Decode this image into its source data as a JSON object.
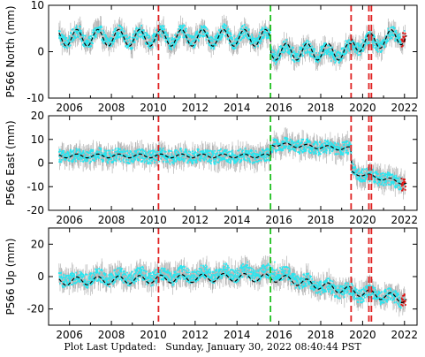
{
  "footer": {
    "label": "Plot Last Updated:",
    "date": "Sunday, January 30, 2022 08:40:44 PST"
  },
  "colors": {
    "data": "#29e6f0",
    "error_bars": "#b4b4b4",
    "model": "#000000",
    "recent_data": "#e01010",
    "equipment_event": "#e02020",
    "earthquake_event": "#1fc11f"
  },
  "chart_data": [
    {
      "type": "scatter",
      "title": "",
      "ylabel": "P566 North (mm)",
      "xlabel": "",
      "xlim": [
        2005.0,
        2022.6
      ],
      "ylim": [
        -10,
        10
      ],
      "x_ticks": [
        2006,
        2008,
        2010,
        2012,
        2014,
        2016,
        2018,
        2020,
        2022
      ],
      "y_ticks": [
        -10,
        0,
        10
      ],
      "series": [
        {
          "x": [
            2005.5,
            2006.0,
            2006.5,
            2007.0,
            2007.5,
            2008.0,
            2008.5,
            2009.0,
            2009.5,
            2010.0,
            2010.5,
            2011.0,
            2011.5,
            2012.0,
            2012.5,
            2013.0,
            2013.5,
            2014.0,
            2014.5,
            2015.0,
            2015.5,
            2015.8,
            2016.2,
            2016.5,
            2017.0,
            2017.5,
            2018.0,
            2018.5,
            2019.0,
            2019.5,
            2020.0,
            2020.5,
            2021.0,
            2021.5,
            2022.0
          ],
          "values": [
            3.5,
            3.0,
            4.0,
            2.5,
            4.5,
            3.0,
            4.0,
            2.5,
            4.5,
            3.0,
            4.0,
            2.5,
            4.5,
            3.5,
            4.0,
            3.0,
            4.5,
            3.0,
            4.0,
            3.0,
            3.5,
            -1.0,
            1.0,
            -0.5,
            1.0,
            -1.0,
            1.0,
            -2.0,
            0.5,
            1.0,
            2.0,
            1.0,
            2.5,
            3.5,
            4.5
          ]
        }
      ],
      "model": {
        "trend": [
          [
            2005.5,
            3.0
          ],
          [
            2015.6,
            3.0
          ],
          [
            2015.62,
            0.0
          ],
          [
            2019.45,
            0.0
          ],
          [
            2019.47,
            1.5
          ],
          [
            2022.1,
            3.5
          ]
        ],
        "seasonal_amplitude": 1.8
      },
      "event_lines": {
        "equipment": [
          2010.25,
          2019.45,
          2020.3,
          2020.42
        ],
        "earthquake": [
          2015.6
        ]
      }
    },
    {
      "type": "scatter",
      "title": "",
      "ylabel": "P566 East (mm)",
      "xlabel": "",
      "xlim": [
        2005.0,
        2022.6
      ],
      "ylim": [
        -20,
        20
      ],
      "x_ticks": [
        2006,
        2008,
        2010,
        2012,
        2014,
        2016,
        2018,
        2020,
        2022
      ],
      "y_ticks": [
        -20,
        -10,
        0,
        10,
        20
      ],
      "series": [
        {
          "x": [
            2005.5,
            2006.0,
            2006.5,
            2007.0,
            2007.5,
            2008.0,
            2008.5,
            2009.0,
            2009.5,
            2010.0,
            2010.5,
            2011.0,
            2011.5,
            2012.0,
            2012.5,
            2013.0,
            2013.5,
            2014.0,
            2014.5,
            2015.0,
            2015.5,
            2015.8,
            2016.2,
            2016.5,
            2017.0,
            2017.5,
            2018.0,
            2018.5,
            2019.0,
            2019.4,
            2019.6,
            2020.0,
            2020.5,
            2021.0,
            2021.5,
            2022.0
          ],
          "values": [
            3.0,
            3.0,
            2.5,
            3.0,
            3.5,
            3.0,
            3.0,
            3.0,
            2.5,
            3.0,
            3.0,
            2.5,
            3.0,
            3.0,
            3.0,
            2.5,
            3.0,
            3.0,
            3.0,
            3.0,
            3.0,
            8.0,
            7.5,
            7.0,
            7.0,
            6.5,
            6.5,
            6.0,
            6.0,
            6.0,
            -4.0,
            -4.5,
            -6.0,
            -7.0,
            -8.0,
            -9.0
          ]
        }
      ],
      "model": {
        "trend": [
          [
            2005.5,
            3.0
          ],
          [
            2015.6,
            3.0
          ],
          [
            2015.62,
            8.0
          ],
          [
            2019.45,
            6.0
          ],
          [
            2019.47,
            -4.0
          ],
          [
            2022.1,
            -8.5
          ]
        ],
        "seasonal_amplitude": 0.8
      },
      "event_lines": {
        "equipment": [
          2010.25,
          2019.45,
          2020.3,
          2020.42
        ],
        "earthquake": [
          2015.6
        ]
      }
    },
    {
      "type": "scatter",
      "title": "",
      "ylabel": "P566 Up (mm)",
      "xlabel": "",
      "xlim": [
        2005.0,
        2022.6
      ],
      "ylim": [
        -30,
        30
      ],
      "x_ticks": [
        2006,
        2008,
        2010,
        2012,
        2014,
        2016,
        2018,
        2020,
        2022
      ],
      "y_ticks": [
        -20,
        0,
        20
      ],
      "series": [
        {
          "x": [
            2005.5,
            2006.0,
            2006.5,
            2007.0,
            2007.5,
            2008.0,
            2008.5,
            2009.0,
            2009.5,
            2010.0,
            2010.5,
            2011.0,
            2011.5,
            2012.0,
            2012.5,
            2013.0,
            2013.5,
            2014.0,
            2014.5,
            2015.0,
            2015.5,
            2015.8,
            2016.2,
            2016.5,
            2017.0,
            2017.5,
            2018.0,
            2018.5,
            2019.0,
            2019.5,
            2020.0,
            2020.5,
            2021.0,
            2021.5,
            2022.0
          ],
          "values": [
            2.0,
            -1.0,
            3.0,
            1.0,
            4.0,
            2.0,
            5.0,
            3.0,
            6.0,
            2.0,
            5.0,
            3.0,
            6.0,
            4.0,
            7.0,
            4.0,
            8.0,
            5.0,
            9.0,
            4.0,
            8.0,
            9.0,
            6.0,
            5.0,
            -2.0,
            -3.0,
            -6.0,
            -8.0,
            -10.0,
            -11.0,
            -12.0,
            -11.0,
            -12.0,
            -13.0,
            -14.0
          ]
        }
      ],
      "model": {
        "trend": [
          [
            2005.5,
            -3.0
          ],
          [
            2013.8,
            -0.5
          ],
          [
            2016.0,
            -1.0
          ],
          [
            2019.5,
            -9.0
          ],
          [
            2022.1,
            -14.0
          ]
        ],
        "seasonal_amplitude": 2.5
      },
      "event_lines": {
        "equipment": [
          2010.25,
          2019.45,
          2020.3,
          2020.42
        ],
        "earthquake": [
          2015.6
        ]
      }
    }
  ]
}
